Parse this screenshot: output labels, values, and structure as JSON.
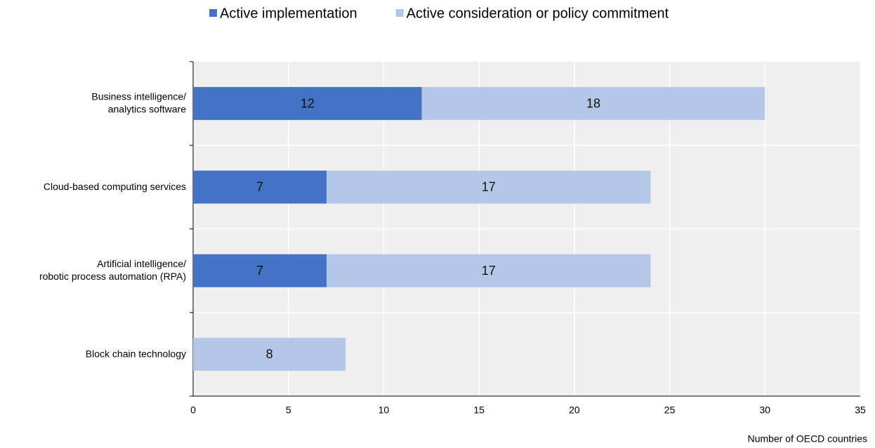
{
  "chart_data": {
    "type": "stacked-bar-horizontal",
    "categories": [
      [
        "Business intelligence/",
        "analytics software"
      ],
      [
        "Cloud-based computing services"
      ],
      [
        "Artificial intelligence/",
        "robotic process automation (RPA)"
      ],
      [
        "Block chain technology"
      ]
    ],
    "series": [
      {
        "name": "Active implementation",
        "color": "#4472c4",
        "values": [
          12,
          7,
          7,
          null
        ]
      },
      {
        "name": "Active consideration or policy commitment",
        "color": "#b4c7e7",
        "values": [
          18,
          17,
          17,
          8
        ]
      }
    ],
    "xlabel": "Number of OECD countries",
    "xlim": [
      0,
      35
    ],
    "xticks": [
      0,
      5,
      10,
      15,
      20,
      25,
      30,
      35
    ],
    "grid": true,
    "legend": "top"
  }
}
